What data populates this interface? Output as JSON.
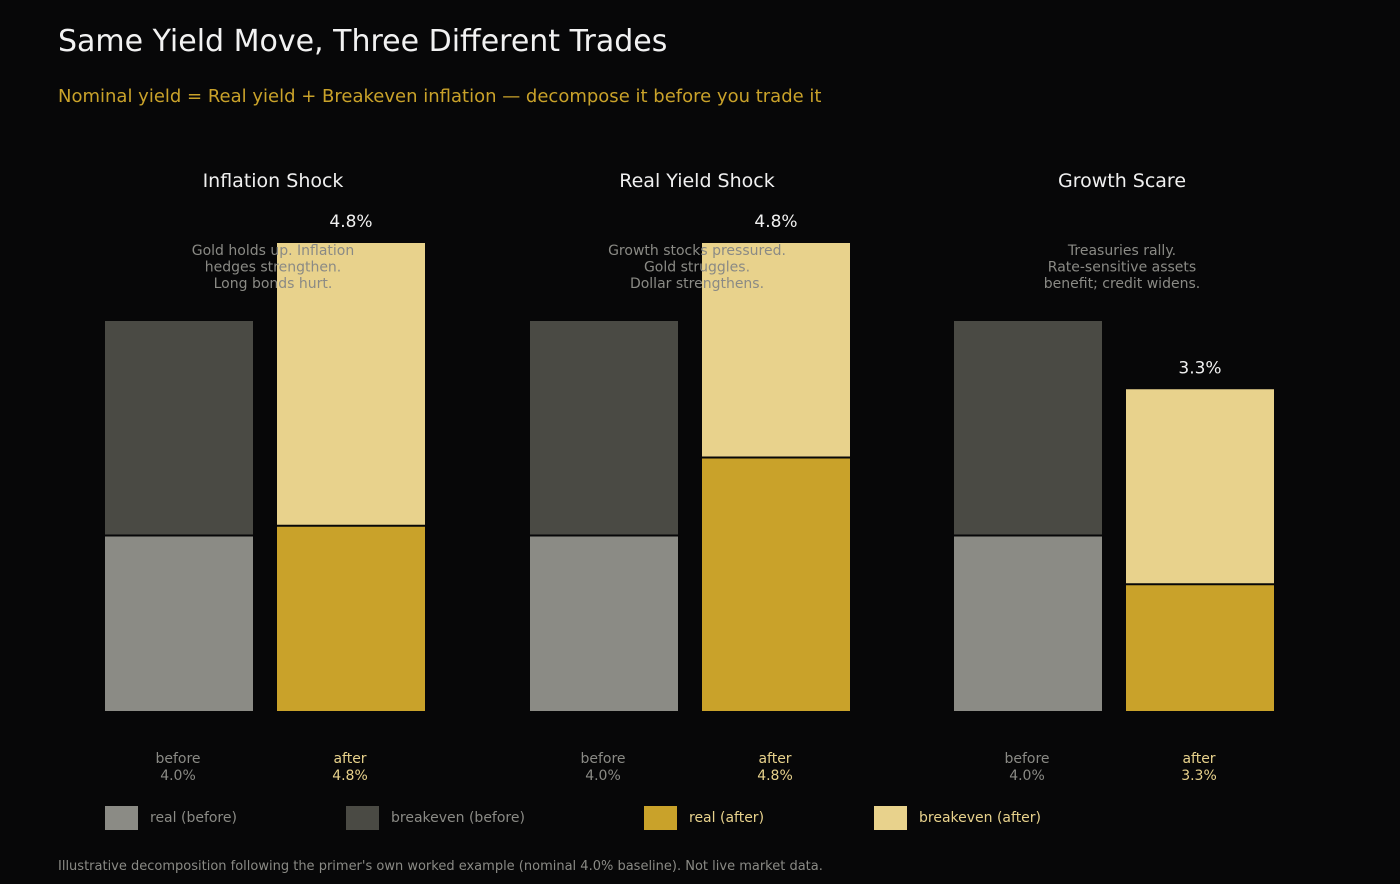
{
  "title": "Same Yield Move, Three Different Trades",
  "subtitle": "Nominal yield = Real yield + Breakeven inflation — decompose it before you trade it",
  "footnote": "Illustrative decomposition following the primer's own worked example (nominal 4.0% baseline). Not live market data.",
  "colors": {
    "real_before": "#8b8b85",
    "breakeven_before": "#4a4a44",
    "real_after": "#c9a22a",
    "breakeven_after": "#e8d28c",
    "background": "#070708"
  },
  "legend": [
    {
      "label": "real (before)",
      "color": "#8b8b85",
      "text_color": "#8a8a85"
    },
    {
      "label": "breakeven (before)",
      "color": "#4a4a44",
      "text_color": "#8a8a85"
    },
    {
      "label": "real (after)",
      "color": "#c9a22a",
      "text_color": "#e8d28c"
    },
    {
      "label": "breakeven (after)",
      "color": "#e8d28c",
      "text_color": "#e8d28c"
    }
  ],
  "chart_data": {
    "type": "bar",
    "stacked": true,
    "ylim": [
      0,
      4.8
    ],
    "grid": false,
    "legend_position": "bottom",
    "panels": [
      {
        "title": "Inflation Shock",
        "note": [
          "Gold holds up. Inflation",
          "hedges strengthen.",
          "Long bonds hurt."
        ],
        "bars": [
          {
            "label": "before",
            "value_label": "4.0%",
            "real": 1.8,
            "breakeven": 2.2
          },
          {
            "label": "after",
            "value_label": "4.8%",
            "top_label": "4.8%",
            "real": 1.9,
            "breakeven": 2.9
          }
        ]
      },
      {
        "title": "Real Yield Shock",
        "note": [
          "Growth stocks pressured.",
          "Gold struggles.",
          "Dollar strengthens."
        ],
        "bars": [
          {
            "label": "before",
            "value_label": "4.0%",
            "real": 1.8,
            "breakeven": 2.2
          },
          {
            "label": "after",
            "value_label": "4.8%",
            "top_label": "4.8%",
            "real": 2.6,
            "breakeven": 2.2
          }
        ]
      },
      {
        "title": "Growth Scare",
        "note": [
          "Treasuries rally.",
          "Rate-sensitive assets",
          "benefit; credit widens."
        ],
        "bars": [
          {
            "label": "before",
            "value_label": "4.0%",
            "real": 1.8,
            "breakeven": 2.2
          },
          {
            "label": "after",
            "value_label": "3.3%",
            "top_label": "3.3%",
            "real": 1.3,
            "breakeven": 2.0
          }
        ]
      }
    ]
  }
}
